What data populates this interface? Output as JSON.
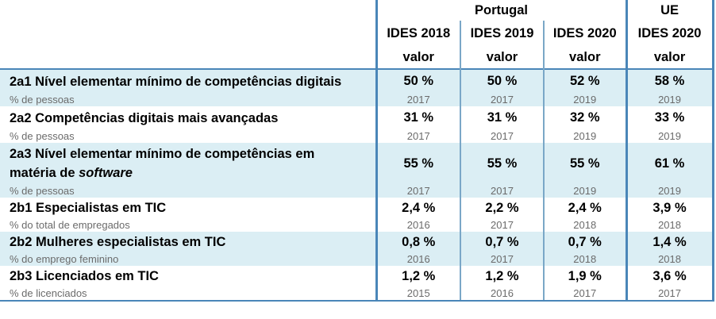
{
  "header": {
    "portugal": "Portugal",
    "ue": "UE",
    "cols": [
      "IDES 2018",
      "IDES 2019",
      "IDES 2020",
      "IDES 2020"
    ],
    "valor": "valor"
  },
  "rows": [
    {
      "label": "2a1 Nível elementar mínimo de competências digitais",
      "sub": "% de pessoas",
      "values": [
        "50 %",
        "50 %",
        "52 %",
        "58 %"
      ],
      "years": [
        "2017",
        "2017",
        "2019",
        "2019"
      ]
    },
    {
      "label": "2a2 Competências digitais mais avançadas",
      "sub": "% de pessoas",
      "values": [
        "31 %",
        "31 %",
        "32 %",
        "33 %"
      ],
      "years": [
        "2017",
        "2017",
        "2019",
        "2019"
      ]
    },
    {
      "label_line1": "2a3 Nível elementar mínimo de competências em",
      "label_line2_pre": "matéria de ",
      "label_line2_em": "software",
      "sub": "% de pessoas",
      "values": [
        "55 %",
        "55 %",
        "55 %",
        "61 %"
      ],
      "years": [
        "2017",
        "2017",
        "2019",
        "2019"
      ]
    },
    {
      "label": "2b1 Especialistas em TIC",
      "sub": "% do total de empregados",
      "values": [
        "2,4 %",
        "2,2 %",
        "2,4 %",
        "3,9 %"
      ],
      "years": [
        "2016",
        "2017",
        "2018",
        "2018"
      ]
    },
    {
      "label": "2b2 Mulheres especialistas em TIC",
      "sub": "% do emprego feminino",
      "values": [
        "0,8 %",
        "0,7 %",
        "0,7 %",
        "1,4 %"
      ],
      "years": [
        "2016",
        "2017",
        "2018",
        "2018"
      ]
    },
    {
      "label": "2b3 Licenciados em TIC",
      "sub": "% de licenciados",
      "values": [
        "1,2 %",
        "1,2 %",
        "1,9 %",
        "3,6 %"
      ],
      "years": [
        "2015",
        "2016",
        "2017",
        "2017"
      ]
    }
  ]
}
